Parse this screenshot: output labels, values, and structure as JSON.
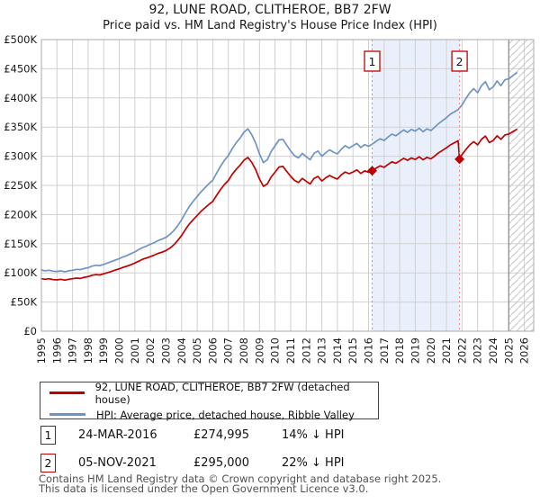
{
  "title": "92, LUNE ROAD, CLITHEROE, BB7 2FW",
  "subtitle": "Price paid vs. HM Land Registry's House Price Index (HPI)",
  "chart_data": {
    "type": "line",
    "x_axis": {
      "domain": [
        1995,
        2026.6
      ],
      "ticks": [
        1995,
        1996,
        1997,
        1998,
        1999,
        2000,
        2001,
        2002,
        2003,
        2004,
        2005,
        2006,
        2007,
        2008,
        2009,
        2010,
        2011,
        2012,
        2013,
        2014,
        2015,
        2016,
        2017,
        2018,
        2019,
        2020,
        2021,
        2022,
        2023,
        2024,
        2025,
        2026
      ]
    },
    "y_axis": {
      "domain": [
        0,
        500
      ],
      "unit": "£K",
      "tick_values": [
        0,
        50,
        100,
        150,
        200,
        250,
        300,
        350,
        400,
        450,
        500
      ],
      "tick_labels": [
        "£0",
        "£50K",
        "£100K",
        "£150K",
        "£200K",
        "£250K",
        "£300K",
        "£350K",
        "£400K",
        "£450K",
        "£500K"
      ]
    },
    "grid": true,
    "shaded_region": [
      2016.23,
      2021.84
    ],
    "hatch_from": 2025.0,
    "series": [
      {
        "name": "92, LUNE ROAD, CLITHEROE, BB7 2FW (detached house)",
        "color": "#c00000",
        "points": [
          [
            1995.0,
            90
          ],
          [
            1995.25,
            89
          ],
          [
            1995.5,
            90
          ],
          [
            1995.75,
            88.5
          ],
          [
            1996.0,
            88
          ],
          [
            1996.25,
            89
          ],
          [
            1996.5,
            87.5
          ],
          [
            1996.75,
            89
          ],
          [
            1997.0,
            90
          ],
          [
            1997.25,
            91
          ],
          [
            1997.5,
            90.5
          ],
          [
            1997.75,
            92.5
          ],
          [
            1998.0,
            93.5
          ],
          [
            1998.25,
            96
          ],
          [
            1998.5,
            97
          ],
          [
            1998.75,
            96.5
          ],
          [
            1999.0,
            98.5
          ],
          [
            1999.25,
            100.5
          ],
          [
            1999.5,
            102.5
          ],
          [
            1999.75,
            105
          ],
          [
            2000.0,
            107
          ],
          [
            2000.25,
            109.5
          ],
          [
            2000.5,
            111.5
          ],
          [
            2000.75,
            114
          ],
          [
            2001.0,
            117
          ],
          [
            2001.25,
            120
          ],
          [
            2001.5,
            123.5
          ],
          [
            2001.75,
            125.5
          ],
          [
            2002.0,
            128
          ],
          [
            2002.25,
            130.5
          ],
          [
            2002.5,
            133.5
          ],
          [
            2002.75,
            135.5
          ],
          [
            2003.0,
            138.5
          ],
          [
            2003.25,
            142.5
          ],
          [
            2003.5,
            148
          ],
          [
            2003.75,
            155.5
          ],
          [
            2004.0,
            164
          ],
          [
            2004.25,
            174.5
          ],
          [
            2004.5,
            184
          ],
          [
            2004.75,
            191.5
          ],
          [
            2005.0,
            198.5
          ],
          [
            2005.25,
            205.5
          ],
          [
            2005.5,
            211.5
          ],
          [
            2005.75,
            217.5
          ],
          [
            2006.0,
            222.5
          ],
          [
            2006.25,
            233
          ],
          [
            2006.5,
            243
          ],
          [
            2006.75,
            251.5
          ],
          [
            2007.0,
            258.5
          ],
          [
            2007.25,
            269
          ],
          [
            2007.5,
            277.5
          ],
          [
            2007.75,
            284.5
          ],
          [
            2008.0,
            293
          ],
          [
            2008.25,
            298
          ],
          [
            2008.5,
            289.5
          ],
          [
            2008.75,
            277.5
          ],
          [
            2009.0,
            261
          ],
          [
            2009.25,
            248.5
          ],
          [
            2009.5,
            252.5
          ],
          [
            2009.75,
            264.5
          ],
          [
            2010.0,
            273
          ],
          [
            2010.25,
            281.5
          ],
          [
            2010.5,
            282.5
          ],
          [
            2010.75,
            274
          ],
          [
            2011.0,
            265.5
          ],
          [
            2011.25,
            258.5
          ],
          [
            2011.5,
            255
          ],
          [
            2011.75,
            262
          ],
          [
            2012.0,
            257
          ],
          [
            2012.25,
            252.5
          ],
          [
            2012.5,
            262
          ],
          [
            2012.75,
            265.5
          ],
          [
            2013.0,
            257.5
          ],
          [
            2013.25,
            263
          ],
          [
            2013.5,
            267
          ],
          [
            2013.75,
            263.5
          ],
          [
            2014.0,
            261
          ],
          [
            2014.25,
            268
          ],
          [
            2014.5,
            273
          ],
          [
            2014.75,
            270
          ],
          [
            2015.0,
            273
          ],
          [
            2015.25,
            276.5
          ],
          [
            2015.5,
            270.5
          ],
          [
            2015.75,
            275
          ],
          [
            2016.0,
            272.5
          ],
          [
            2016.23,
            275
          ],
          [
            2016.5,
            280
          ],
          [
            2016.75,
            283.5
          ],
          [
            2017.0,
            281
          ],
          [
            2017.25,
            286
          ],
          [
            2017.5,
            290.5
          ],
          [
            2017.75,
            288
          ],
          [
            2018.0,
            292
          ],
          [
            2018.25,
            296.5
          ],
          [
            2018.5,
            293
          ],
          [
            2018.75,
            297
          ],
          [
            2019.0,
            294.5
          ],
          [
            2019.25,
            299
          ],
          [
            2019.5,
            294
          ],
          [
            2019.75,
            298
          ],
          [
            2020.0,
            295.5
          ],
          [
            2020.25,
            300.5
          ],
          [
            2020.5,
            306
          ],
          [
            2020.75,
            310
          ],
          [
            2021.0,
            314.5
          ],
          [
            2021.25,
            319.5
          ],
          [
            2021.5,
            323
          ],
          [
            2021.75,
            326.5
          ],
          [
            2021.84,
            295
          ],
          [
            2022.0,
            303
          ],
          [
            2022.25,
            311.5
          ],
          [
            2022.5,
            319.5
          ],
          [
            2022.75,
            325
          ],
          [
            2023.0,
            319.5
          ],
          [
            2023.25,
            329
          ],
          [
            2023.5,
            334.5
          ],
          [
            2023.75,
            323.5
          ],
          [
            2024.0,
            327
          ],
          [
            2024.25,
            335
          ],
          [
            2024.5,
            329
          ],
          [
            2024.75,
            336.5
          ],
          [
            2025.0,
            338
          ],
          [
            2025.25,
            342
          ],
          [
            2025.5,
            346
          ]
        ]
      },
      {
        "name": "HPI: Average price, detached house, Ribble Valley",
        "color": "#6d94c5",
        "points": [
          [
            1995.0,
            105
          ],
          [
            1995.25,
            103.5
          ],
          [
            1995.5,
            104.5
          ],
          [
            1995.75,
            103
          ],
          [
            1996.0,
            102.5
          ],
          [
            1996.25,
            103.5
          ],
          [
            1996.5,
            102
          ],
          [
            1996.75,
            103.5
          ],
          [
            1997.0,
            104.5
          ],
          [
            1997.25,
            106
          ],
          [
            1997.5,
            105.5
          ],
          [
            1997.75,
            107.5
          ],
          [
            1998.0,
            109
          ],
          [
            1998.25,
            111.5
          ],
          [
            1998.5,
            113
          ],
          [
            1998.75,
            112.5
          ],
          [
            1999.0,
            114.5
          ],
          [
            1999.25,
            117
          ],
          [
            1999.5,
            119.5
          ],
          [
            1999.75,
            122
          ],
          [
            2000.0,
            124.5
          ],
          [
            2000.25,
            127.5
          ],
          [
            2000.5,
            130
          ],
          [
            2000.75,
            133
          ],
          [
            2001.0,
            136
          ],
          [
            2001.25,
            140
          ],
          [
            2001.5,
            143.5
          ],
          [
            2001.75,
            146
          ],
          [
            2002.0,
            149
          ],
          [
            2002.25,
            152
          ],
          [
            2002.5,
            155.5
          ],
          [
            2002.75,
            158
          ],
          [
            2003.0,
            161
          ],
          [
            2003.25,
            166
          ],
          [
            2003.5,
            172.5
          ],
          [
            2003.75,
            181
          ],
          [
            2004.0,
            191
          ],
          [
            2004.25,
            203
          ],
          [
            2004.5,
            214
          ],
          [
            2004.75,
            223
          ],
          [
            2005.0,
            231
          ],
          [
            2005.25,
            239
          ],
          [
            2005.5,
            246
          ],
          [
            2005.75,
            253
          ],
          [
            2006.0,
            259
          ],
          [
            2006.25,
            271
          ],
          [
            2006.5,
            283
          ],
          [
            2006.75,
            293
          ],
          [
            2007.0,
            301
          ],
          [
            2007.25,
            313
          ],
          [
            2007.5,
            323
          ],
          [
            2007.75,
            331
          ],
          [
            2008.0,
            341
          ],
          [
            2008.25,
            347
          ],
          [
            2008.5,
            337
          ],
          [
            2008.75,
            323
          ],
          [
            2009.0,
            304
          ],
          [
            2009.25,
            289
          ],
          [
            2009.5,
            294
          ],
          [
            2009.75,
            308
          ],
          [
            2010.0,
            318
          ],
          [
            2010.25,
            328
          ],
          [
            2010.5,
            329
          ],
          [
            2010.75,
            319
          ],
          [
            2011.0,
            309
          ],
          [
            2011.25,
            301
          ],
          [
            2011.5,
            297
          ],
          [
            2011.75,
            305
          ],
          [
            2012.0,
            299
          ],
          [
            2012.25,
            294
          ],
          [
            2012.5,
            305
          ],
          [
            2012.75,
            309
          ],
          [
            2013.0,
            300
          ],
          [
            2013.25,
            306
          ],
          [
            2013.5,
            311
          ],
          [
            2013.75,
            307
          ],
          [
            2014.0,
            304
          ],
          [
            2014.25,
            312
          ],
          [
            2014.5,
            318
          ],
          [
            2014.75,
            314
          ],
          [
            2015.0,
            318
          ],
          [
            2015.25,
            322
          ],
          [
            2015.5,
            315
          ],
          [
            2015.75,
            320
          ],
          [
            2016.0,
            317
          ],
          [
            2016.25,
            321
          ],
          [
            2016.5,
            326
          ],
          [
            2016.75,
            330
          ],
          [
            2017.0,
            327
          ],
          [
            2017.25,
            333
          ],
          [
            2017.5,
            338
          ],
          [
            2017.75,
            335
          ],
          [
            2018.0,
            340
          ],
          [
            2018.25,
            345
          ],
          [
            2018.5,
            341
          ],
          [
            2018.75,
            346
          ],
          [
            2019.0,
            343
          ],
          [
            2019.25,
            348
          ],
          [
            2019.5,
            342
          ],
          [
            2019.75,
            347
          ],
          [
            2020.0,
            344
          ],
          [
            2020.25,
            350
          ],
          [
            2020.5,
            356
          ],
          [
            2020.75,
            361
          ],
          [
            2021.0,
            366
          ],
          [
            2021.25,
            372
          ],
          [
            2021.5,
            376
          ],
          [
            2021.75,
            380
          ],
          [
            2022.0,
            388
          ],
          [
            2022.25,
            399
          ],
          [
            2022.5,
            409
          ],
          [
            2022.75,
            416
          ],
          [
            2023.0,
            409
          ],
          [
            2023.25,
            421
          ],
          [
            2023.5,
            428
          ],
          [
            2023.75,
            414
          ],
          [
            2024.0,
            419
          ],
          [
            2024.25,
            429
          ],
          [
            2024.5,
            421
          ],
          [
            2024.75,
            431
          ],
          [
            2025.0,
            433
          ],
          [
            2025.25,
            438
          ],
          [
            2025.5,
            443
          ]
        ]
      }
    ],
    "sales": [
      {
        "label": "1",
        "x": 2016.23,
        "value": 275
      },
      {
        "label": "2",
        "x": 2021.84,
        "value": 295
      }
    ],
    "colors": {
      "grid": "#d0d0d0",
      "border": "#a8a8a8",
      "band": "#eaf0fb",
      "sale_dash": "#ef8080",
      "sale_marker": "#c00000",
      "hatch_line": "#c4c4c4",
      "hatch_edge": "#8a8a8a",
      "axis_text": "#1a1a1a"
    }
  },
  "legend": {
    "items": [
      {
        "label": "92, LUNE ROAD, CLITHEROE, BB7 2FW (detached house)",
        "color": "#c00000"
      },
      {
        "label": "HPI: Average price, detached house, Ribble Valley",
        "color": "#6d94c5"
      }
    ]
  },
  "annotations": [
    {
      "num": "1",
      "date": "24-MAR-2016",
      "price": "£274,995",
      "hpi_diff": "14% ↓ HPI"
    },
    {
      "num": "2",
      "date": "05-NOV-2021",
      "price": "£295,000",
      "hpi_diff": "22% ↓ HPI"
    }
  ],
  "footer": {
    "line1": "Contains HM Land Registry data © Crown copyright and database right 2025.",
    "line2": "This data is licensed under the Open Government Licence v3.0."
  }
}
